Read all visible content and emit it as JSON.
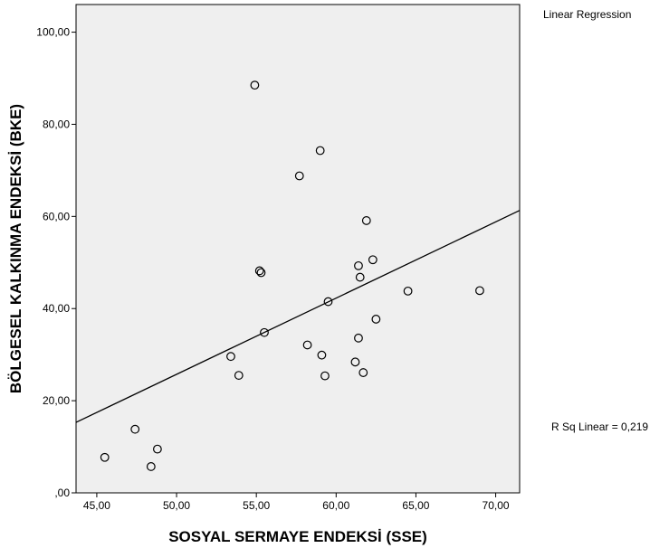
{
  "chart_data": {
    "type": "scatter",
    "title": "",
    "xlabel": "SOSYAL SERMAYE ENDEKSİ (SSE)",
    "ylabel": "BÖLGESEL KALKINMA ENDEKSİ (BKE)",
    "xlim": [
      43.7,
      71.5
    ],
    "ylim": [
      0,
      106
    ],
    "x_ticks": [
      45,
      50,
      55,
      60,
      65,
      70
    ],
    "x_tick_labels": [
      "45,00",
      "50,00",
      "55,00",
      "60,00",
      "65,00",
      "70,00"
    ],
    "y_ticks": [
      0,
      20,
      40,
      60,
      80,
      100
    ],
    "y_tick_labels": [
      ",00",
      "20,00",
      "40,00",
      "60,00",
      "80,00",
      "100,00"
    ],
    "grid": false,
    "background_color": "#efefef",
    "legend_title": "Linear Regression",
    "fit_label": "R Sq Linear = 0,219",
    "fit_line": {
      "x": [
        43.7,
        71.5
      ],
      "y": [
        15.3,
        61.3
      ]
    },
    "points": [
      {
        "x": 45.5,
        "y": 7.7
      },
      {
        "x": 47.4,
        "y": 13.8
      },
      {
        "x": 48.4,
        "y": 5.7
      },
      {
        "x": 48.8,
        "y": 9.5
      },
      {
        "x": 53.4,
        "y": 29.6
      },
      {
        "x": 53.9,
        "y": 25.5
      },
      {
        "x": 54.9,
        "y": 88.5
      },
      {
        "x": 55.2,
        "y": 48.2
      },
      {
        "x": 55.3,
        "y": 47.8
      },
      {
        "x": 55.5,
        "y": 34.8
      },
      {
        "x": 57.7,
        "y": 68.8
      },
      {
        "x": 58.2,
        "y": 32.1
      },
      {
        "x": 59.0,
        "y": 74.3
      },
      {
        "x": 59.1,
        "y": 29.9
      },
      {
        "x": 59.3,
        "y": 25.4
      },
      {
        "x": 59.5,
        "y": 41.5
      },
      {
        "x": 61.2,
        "y": 28.4
      },
      {
        "x": 61.4,
        "y": 33.6
      },
      {
        "x": 61.4,
        "y": 49.3
      },
      {
        "x": 61.5,
        "y": 46.8
      },
      {
        "x": 61.7,
        "y": 26.1
      },
      {
        "x": 61.9,
        "y": 59.1
      },
      {
        "x": 62.3,
        "y": 50.6
      },
      {
        "x": 62.5,
        "y": 37.7
      },
      {
        "x": 64.5,
        "y": 43.8
      },
      {
        "x": 69.0,
        "y": 43.9
      }
    ]
  }
}
